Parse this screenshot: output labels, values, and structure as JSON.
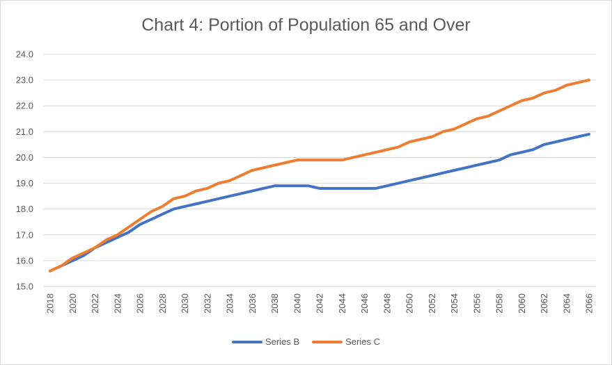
{
  "chart_data": {
    "type": "line",
    "title": "Chart 4: Portion of Population 65 and Over",
    "xlabel": "",
    "ylabel": "",
    "ylim": [
      15.0,
      24.0
    ],
    "yticks": [
      "15.0",
      "16.0",
      "17.0",
      "18.0",
      "19.0",
      "20.0",
      "21.0",
      "22.0",
      "23.0",
      "24.0"
    ],
    "x": [
      2018,
      2019,
      2020,
      2021,
      2022,
      2023,
      2024,
      2025,
      2026,
      2027,
      2028,
      2029,
      2030,
      2031,
      2032,
      2033,
      2034,
      2035,
      2036,
      2037,
      2038,
      2039,
      2040,
      2041,
      2042,
      2043,
      2044,
      2045,
      2046,
      2047,
      2048,
      2049,
      2050,
      2051,
      2052,
      2053,
      2054,
      2055,
      2056,
      2057,
      2058,
      2059,
      2060,
      2061,
      2062,
      2063,
      2064,
      2065,
      2066
    ],
    "xtick_labels": [
      "2018",
      "2020",
      "2022",
      "2024",
      "2026",
      "2028",
      "2030",
      "2032",
      "2034",
      "2036",
      "2038",
      "2040",
      "2042",
      "2044",
      "2046",
      "2048",
      "2050",
      "2052",
      "2054",
      "2056",
      "2058",
      "2060",
      "2062",
      "2064",
      "2066"
    ],
    "grid": true,
    "legend_position": "bottom",
    "series": [
      {
        "name": "Series B",
        "color": "#4472c4",
        "values": [
          15.6,
          15.8,
          16.0,
          16.2,
          16.5,
          16.7,
          16.9,
          17.1,
          17.4,
          17.6,
          17.8,
          18.0,
          18.1,
          18.2,
          18.3,
          18.4,
          18.5,
          18.6,
          18.7,
          18.8,
          18.9,
          18.9,
          18.9,
          18.9,
          18.8,
          18.8,
          18.8,
          18.8,
          18.8,
          18.8,
          18.9,
          19.0,
          19.1,
          19.2,
          19.3,
          19.4,
          19.5,
          19.6,
          19.7,
          19.8,
          19.9,
          20.1,
          20.2,
          20.3,
          20.5,
          20.6,
          20.7,
          20.8,
          20.9
        ]
      },
      {
        "name": "Series C",
        "color": "#ed7d31",
        "values": [
          15.6,
          15.8,
          16.1,
          16.3,
          16.5,
          16.8,
          17.0,
          17.3,
          17.6,
          17.9,
          18.1,
          18.4,
          18.5,
          18.7,
          18.8,
          19.0,
          19.1,
          19.3,
          19.5,
          19.6,
          19.7,
          19.8,
          19.9,
          19.9,
          19.9,
          19.9,
          19.9,
          20.0,
          20.1,
          20.2,
          20.3,
          20.4,
          20.6,
          20.7,
          20.8,
          21.0,
          21.1,
          21.3,
          21.5,
          21.6,
          21.8,
          22.0,
          22.2,
          22.3,
          22.5,
          22.6,
          22.8,
          22.9,
          23.0
        ]
      }
    ]
  }
}
